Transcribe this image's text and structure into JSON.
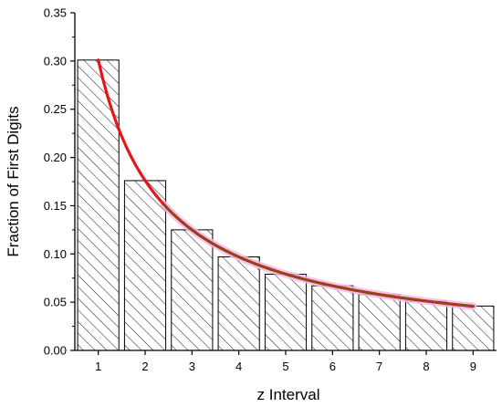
{
  "chart_data": {
    "type": "bar",
    "xlabel": "z Interval",
    "ylabel": "Fraction of First Digits",
    "categories": [
      "1",
      "2",
      "3",
      "4",
      "5",
      "6",
      "7",
      "8",
      "9"
    ],
    "values": [
      0.301,
      0.176,
      0.125,
      0.097,
      0.079,
      0.067,
      0.058,
      0.051,
      0.046
    ],
    "ylim": [
      0,
      0.35
    ],
    "yticks": [
      "0.00",
      "0.05",
      "0.10",
      "0.15",
      "0.20",
      "0.25",
      "0.30",
      "0.35"
    ],
    "ytick_values": [
      0,
      0.05,
      0.1,
      0.15,
      0.2,
      0.25,
      0.3,
      0.35
    ],
    "bar_fill": "hatched diagonal",
    "grid": false,
    "fit_curve": {
      "type": "line",
      "shape": "logarithmic decay",
      "x": [
        1,
        2,
        3,
        4,
        5,
        6,
        7,
        8,
        9
      ],
      "y": [
        0.301,
        0.176,
        0.125,
        0.097,
        0.079,
        0.067,
        0.058,
        0.051,
        0.046
      ],
      "color": "#e8141b",
      "overlay_color": "#8b4a1a",
      "glow_color": "#f4b8e8"
    }
  }
}
